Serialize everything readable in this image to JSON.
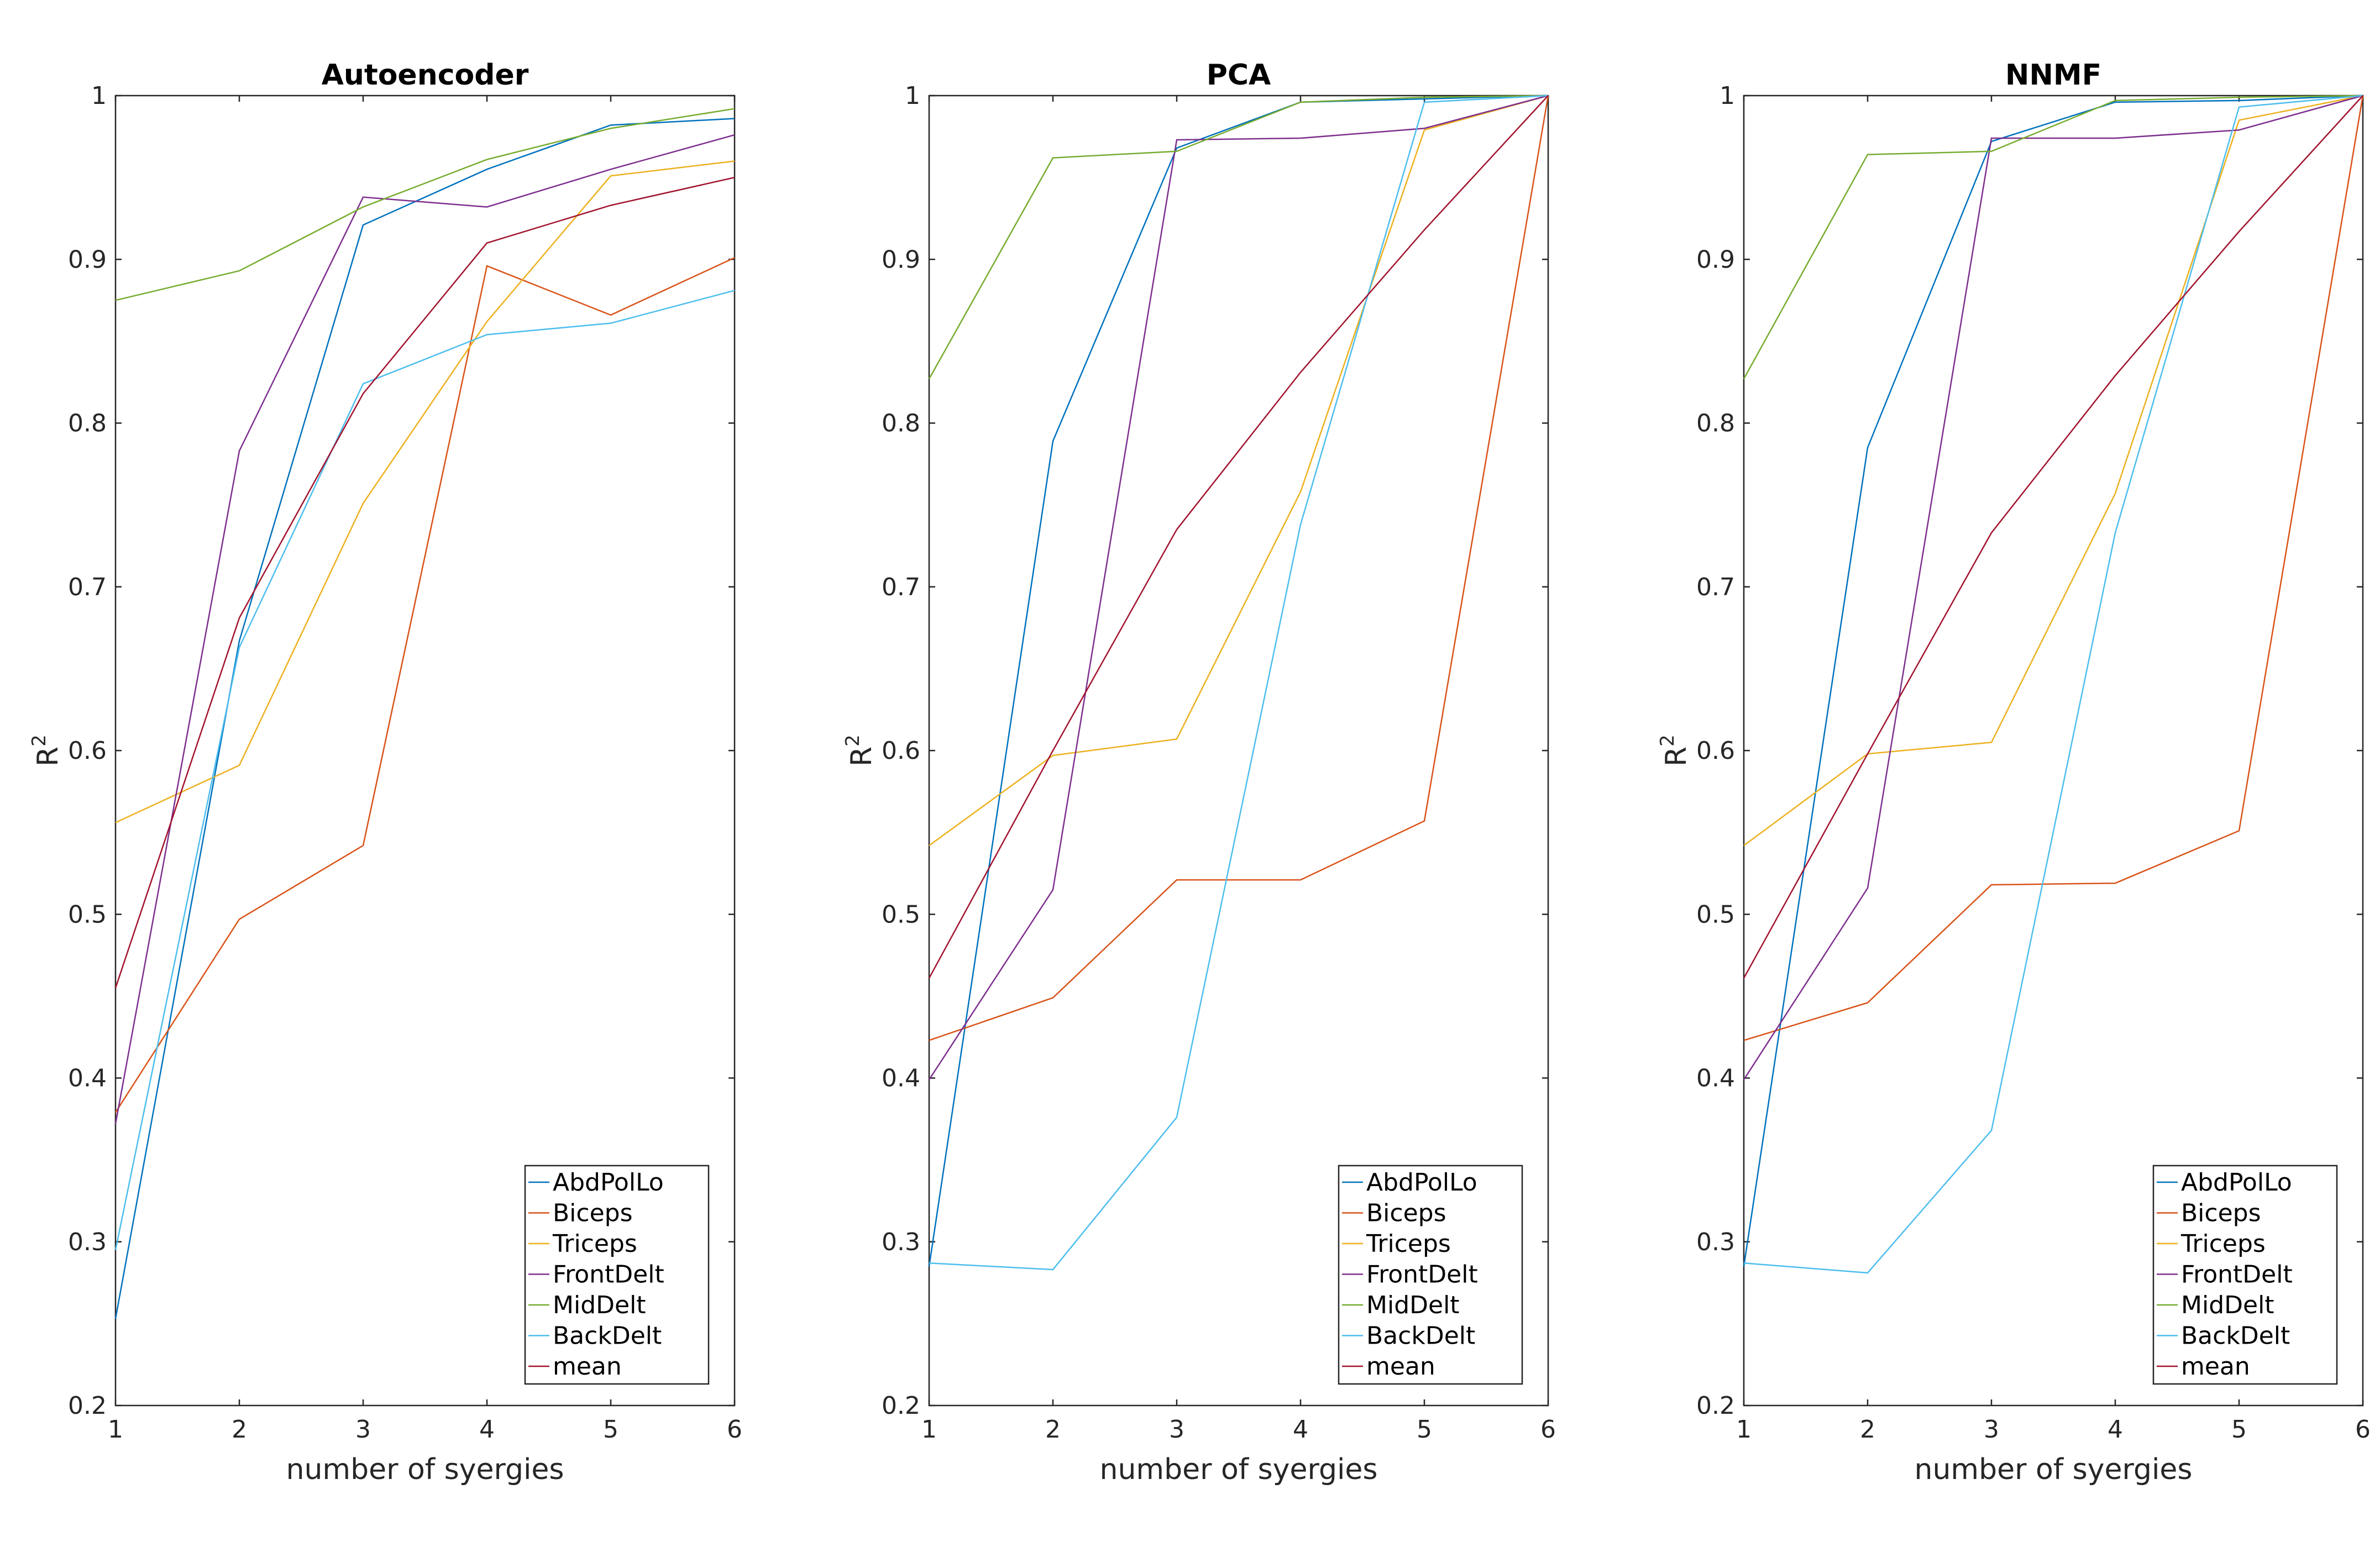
{
  "chart_data": [
    {
      "type": "line",
      "title": "Autoencoder",
      "xlabel": "number of syergies",
      "ylabel": "R2",
      "x": [
        1,
        2,
        3,
        4,
        5,
        6
      ],
      "xlim": [
        1,
        6
      ],
      "ylim": [
        0.2,
        1
      ],
      "xticks": [
        1,
        2,
        3,
        4,
        5,
        6
      ],
      "yticks": [
        0.2,
        0.3,
        0.4,
        0.5,
        0.6,
        0.7,
        0.8,
        0.9,
        1
      ],
      "grid": false,
      "legend_position": "bottom-right",
      "series": [
        {
          "name": "AbdPolLo",
          "color": "#0072BD",
          "values": [
            0.253,
            0.667,
            0.921,
            0.955,
            0.982,
            0.986
          ]
        },
        {
          "name": "Biceps",
          "color": "#D95319",
          "values": [
            0.379,
            0.497,
            0.542,
            0.896,
            0.866,
            0.901
          ]
        },
        {
          "name": "Triceps",
          "color": "#EDB120",
          "values": [
            0.556,
            0.591,
            0.751,
            0.862,
            0.951,
            0.96
          ]
        },
        {
          "name": "FrontDelt",
          "color": "#7E2F8E",
          "values": [
            0.372,
            0.783,
            0.938,
            0.932,
            0.955,
            0.976
          ]
        },
        {
          "name": "MidDelt",
          "color": "#77AC30",
          "values": [
            0.875,
            0.893,
            0.932,
            0.961,
            0.98,
            0.992
          ]
        },
        {
          "name": "BackDelt",
          "color": "#4DBEEE",
          "values": [
            0.295,
            0.663,
            0.824,
            0.854,
            0.861,
            0.881
          ]
        },
        {
          "name": "mean",
          "color": "#A2142F",
          "values": [
            0.455,
            0.681,
            0.818,
            0.91,
            0.933,
            0.95
          ]
        }
      ]
    },
    {
      "type": "line",
      "title": "PCA",
      "xlabel": "number of syergies",
      "ylabel": "R2",
      "x": [
        1,
        2,
        3,
        4,
        5,
        6
      ],
      "xlim": [
        1,
        6
      ],
      "ylim": [
        0.2,
        1
      ],
      "xticks": [
        1,
        2,
        3,
        4,
        5,
        6
      ],
      "yticks": [
        0.2,
        0.3,
        0.4,
        0.5,
        0.6,
        0.7,
        0.8,
        0.9,
        1
      ],
      "grid": false,
      "legend_position": "bottom-right",
      "series": [
        {
          "name": "AbdPolLo",
          "color": "#0072BD",
          "values": [
            0.285,
            0.789,
            0.968,
            0.996,
            0.998,
            1.0
          ]
        },
        {
          "name": "Biceps",
          "color": "#D95319",
          "values": [
            0.423,
            0.449,
            0.521,
            0.521,
            0.557,
            1.0
          ]
        },
        {
          "name": "Triceps",
          "color": "#EDB120",
          "values": [
            0.542,
            0.597,
            0.607,
            0.758,
            0.979,
            1.0
          ]
        },
        {
          "name": "FrontDelt",
          "color": "#7E2F8E",
          "values": [
            0.399,
            0.515,
            0.973,
            0.974,
            0.98,
            1.0
          ]
        },
        {
          "name": "MidDelt",
          "color": "#77AC30",
          "values": [
            0.827,
            0.962,
            0.966,
            0.996,
            0.999,
            1.0
          ]
        },
        {
          "name": "BackDelt",
          "color": "#4DBEEE",
          "values": [
            0.287,
            0.283,
            0.376,
            0.738,
            0.996,
            1.0
          ]
        },
        {
          "name": "mean",
          "color": "#A2142F",
          "values": [
            0.461,
            0.6,
            0.735,
            0.831,
            0.918,
            1.0
          ]
        }
      ]
    },
    {
      "type": "line",
      "title": "NNMF",
      "xlabel": "number of syergies",
      "ylabel": "R2",
      "x": [
        1,
        2,
        3,
        4,
        5,
        6
      ],
      "xlim": [
        1,
        6
      ],
      "ylim": [
        0.2,
        1
      ],
      "xticks": [
        1,
        2,
        3,
        4,
        5,
        6
      ],
      "yticks": [
        0.2,
        0.3,
        0.4,
        0.5,
        0.6,
        0.7,
        0.8,
        0.9,
        1
      ],
      "grid": false,
      "legend_position": "bottom-right",
      "series": [
        {
          "name": "AbdPolLo",
          "color": "#0072BD",
          "values": [
            0.285,
            0.785,
            0.972,
            0.996,
            0.997,
            1.0
          ]
        },
        {
          "name": "Biceps",
          "color": "#D95319",
          "values": [
            0.423,
            0.446,
            0.518,
            0.519,
            0.551,
            1.0
          ]
        },
        {
          "name": "Triceps",
          "color": "#EDB120",
          "values": [
            0.542,
            0.598,
            0.605,
            0.757,
            0.985,
            1.0
          ]
        },
        {
          "name": "FrontDelt",
          "color": "#7E2F8E",
          "values": [
            0.399,
            0.516,
            0.974,
            0.974,
            0.979,
            1.0
          ]
        },
        {
          "name": "MidDelt",
          "color": "#77AC30",
          "values": [
            0.827,
            0.964,
            0.966,
            0.997,
            0.999,
            1.0
          ]
        },
        {
          "name": "BackDelt",
          "color": "#4DBEEE",
          "values": [
            0.287,
            0.281,
            0.368,
            0.733,
            0.993,
            1.0
          ]
        },
        {
          "name": "mean",
          "color": "#A2142F",
          "values": [
            0.461,
            0.598,
            0.733,
            0.829,
            0.917,
            1.0
          ]
        }
      ]
    }
  ]
}
